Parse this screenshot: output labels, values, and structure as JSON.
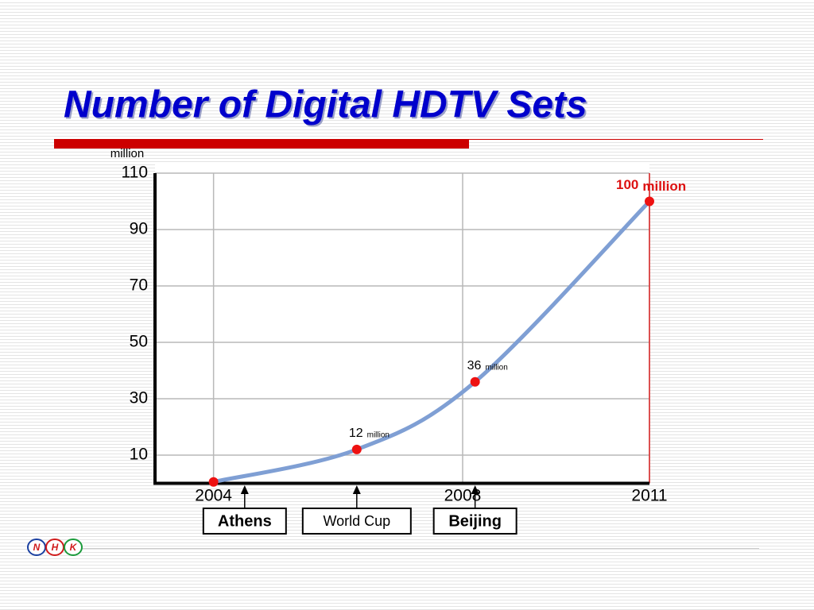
{
  "title": "Number of Digital HDTV Sets",
  "logo": [
    "N",
    "H",
    "K"
  ],
  "chart_data": {
    "type": "line",
    "y_label": "million",
    "x": [
      2004,
      2006.3,
      2008.2,
      2011
    ],
    "values": [
      0.5,
      12,
      36,
      100
    ],
    "value_labels": [
      null,
      "12",
      "36",
      "100"
    ],
    "value_label_unit": "million",
    "color": "#7f9fd4",
    "marker_color": "#ee1111",
    "xlim": [
      2003.06,
      2011
    ],
    "xticks": [
      2004,
      2008,
      2011
    ],
    "ylim": [
      0,
      110
    ],
    "yticks": [
      10,
      30,
      50,
      70,
      90,
      110
    ],
    "grid": true,
    "events": [
      {
        "label": "Athens",
        "x": 2004.5
      },
      {
        "label": "World Cup",
        "x": 2006.3
      },
      {
        "label": "Beijing",
        "x": 2008.2
      }
    ]
  }
}
